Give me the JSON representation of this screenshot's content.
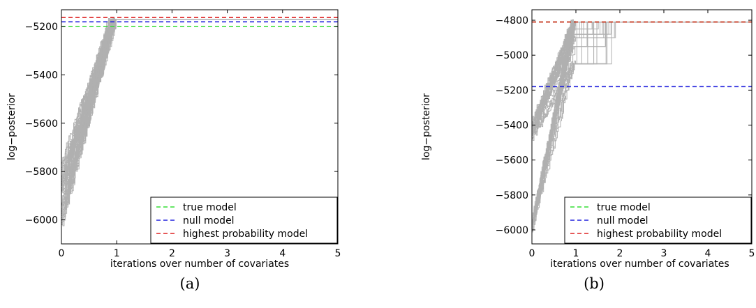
{
  "chart_data": [
    {
      "type": "line",
      "caption": "(a)",
      "xlabel": "iterations over number of covariates",
      "ylabel": "log−posterior",
      "xlim": [
        0,
        5
      ],
      "ylim": [
        -6100,
        -5130
      ],
      "xticks": [
        0,
        1,
        2,
        3,
        4,
        5
      ],
      "yticks": [
        -6000,
        -5800,
        -5600,
        -5400,
        -5200
      ],
      "grid": false,
      "legend_placement": "bottom-right",
      "reference_lines": [
        {
          "name": "true model",
          "y": -5200,
          "color": "#33dd33"
        },
        {
          "name": "null model",
          "y": -5180,
          "color": "#2222dd"
        },
        {
          "name": "highest probability model",
          "y": -5162,
          "color": "#dd2222"
        }
      ],
      "trace_color": "#b0b0b0",
      "trace_groups": [
        {
          "count": 30,
          "start_min": -6030,
          "start_max": -5930,
          "end_x_min": 0.88,
          "end_x_max": 0.99,
          "plateau": -5170
        },
        {
          "count": 30,
          "start_min": -5900,
          "start_max": -5760,
          "end_x_min": 0.85,
          "end_x_max": 0.98,
          "plateau": -5170
        }
      ]
    },
    {
      "type": "line",
      "caption": "(b)",
      "xlabel": "iterations over number of covariates",
      "ylabel": "log−posterior",
      "xlim": [
        0,
        5
      ],
      "ylim": [
        -6080,
        -4740
      ],
      "xticks": [
        0,
        1,
        2,
        3,
        4,
        5
      ],
      "yticks": [
        -6000,
        -5800,
        -5600,
        -5400,
        -5200,
        -5000,
        -4800
      ],
      "grid": false,
      "legend_placement": "bottom-right",
      "reference_lines": [
        {
          "name": "true model",
          "y": -4810,
          "color": "#33dd33"
        },
        {
          "name": "null model",
          "y": -5180,
          "color": "#2222dd"
        },
        {
          "name": "highest probability model",
          "y": -4810,
          "color": "#dd2222"
        }
      ],
      "trace_color": "#b0b0b0",
      "trace_groups": [
        {
          "count": 30,
          "start_min": -6020,
          "start_max": -5940,
          "end_x_min": 0.9,
          "end_x_max": 1.0,
          "plateau": -4810
        },
        {
          "count": 30,
          "start_min": -5480,
          "start_max": -5380,
          "end_x_min": 0.9,
          "end_x_max": 1.0,
          "plateau": -4810
        }
      ],
      "plateau_steps": [
        -4810,
        -4850,
        -4880,
        -4900,
        -4950,
        -5050
      ]
    }
  ]
}
